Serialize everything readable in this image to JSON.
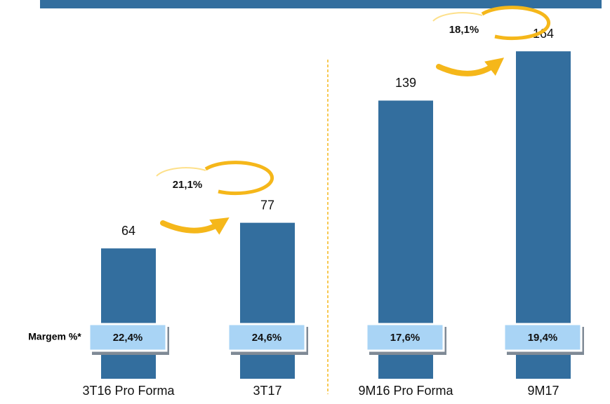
{
  "chart_data": {
    "type": "bar",
    "categories": [
      "3T16 Pro Forma",
      "3T17",
      "9M16 Pro Forma",
      "9M17"
    ],
    "values": [
      64,
      77,
      139,
      164
    ],
    "color": "#336e9e",
    "margin_label": "Margem %*",
    "margins": [
      "22,4%",
      "24,6%",
      "17,6%",
      "19,4%"
    ],
    "growth": [
      "21,1%",
      "18,1%"
    ]
  }
}
